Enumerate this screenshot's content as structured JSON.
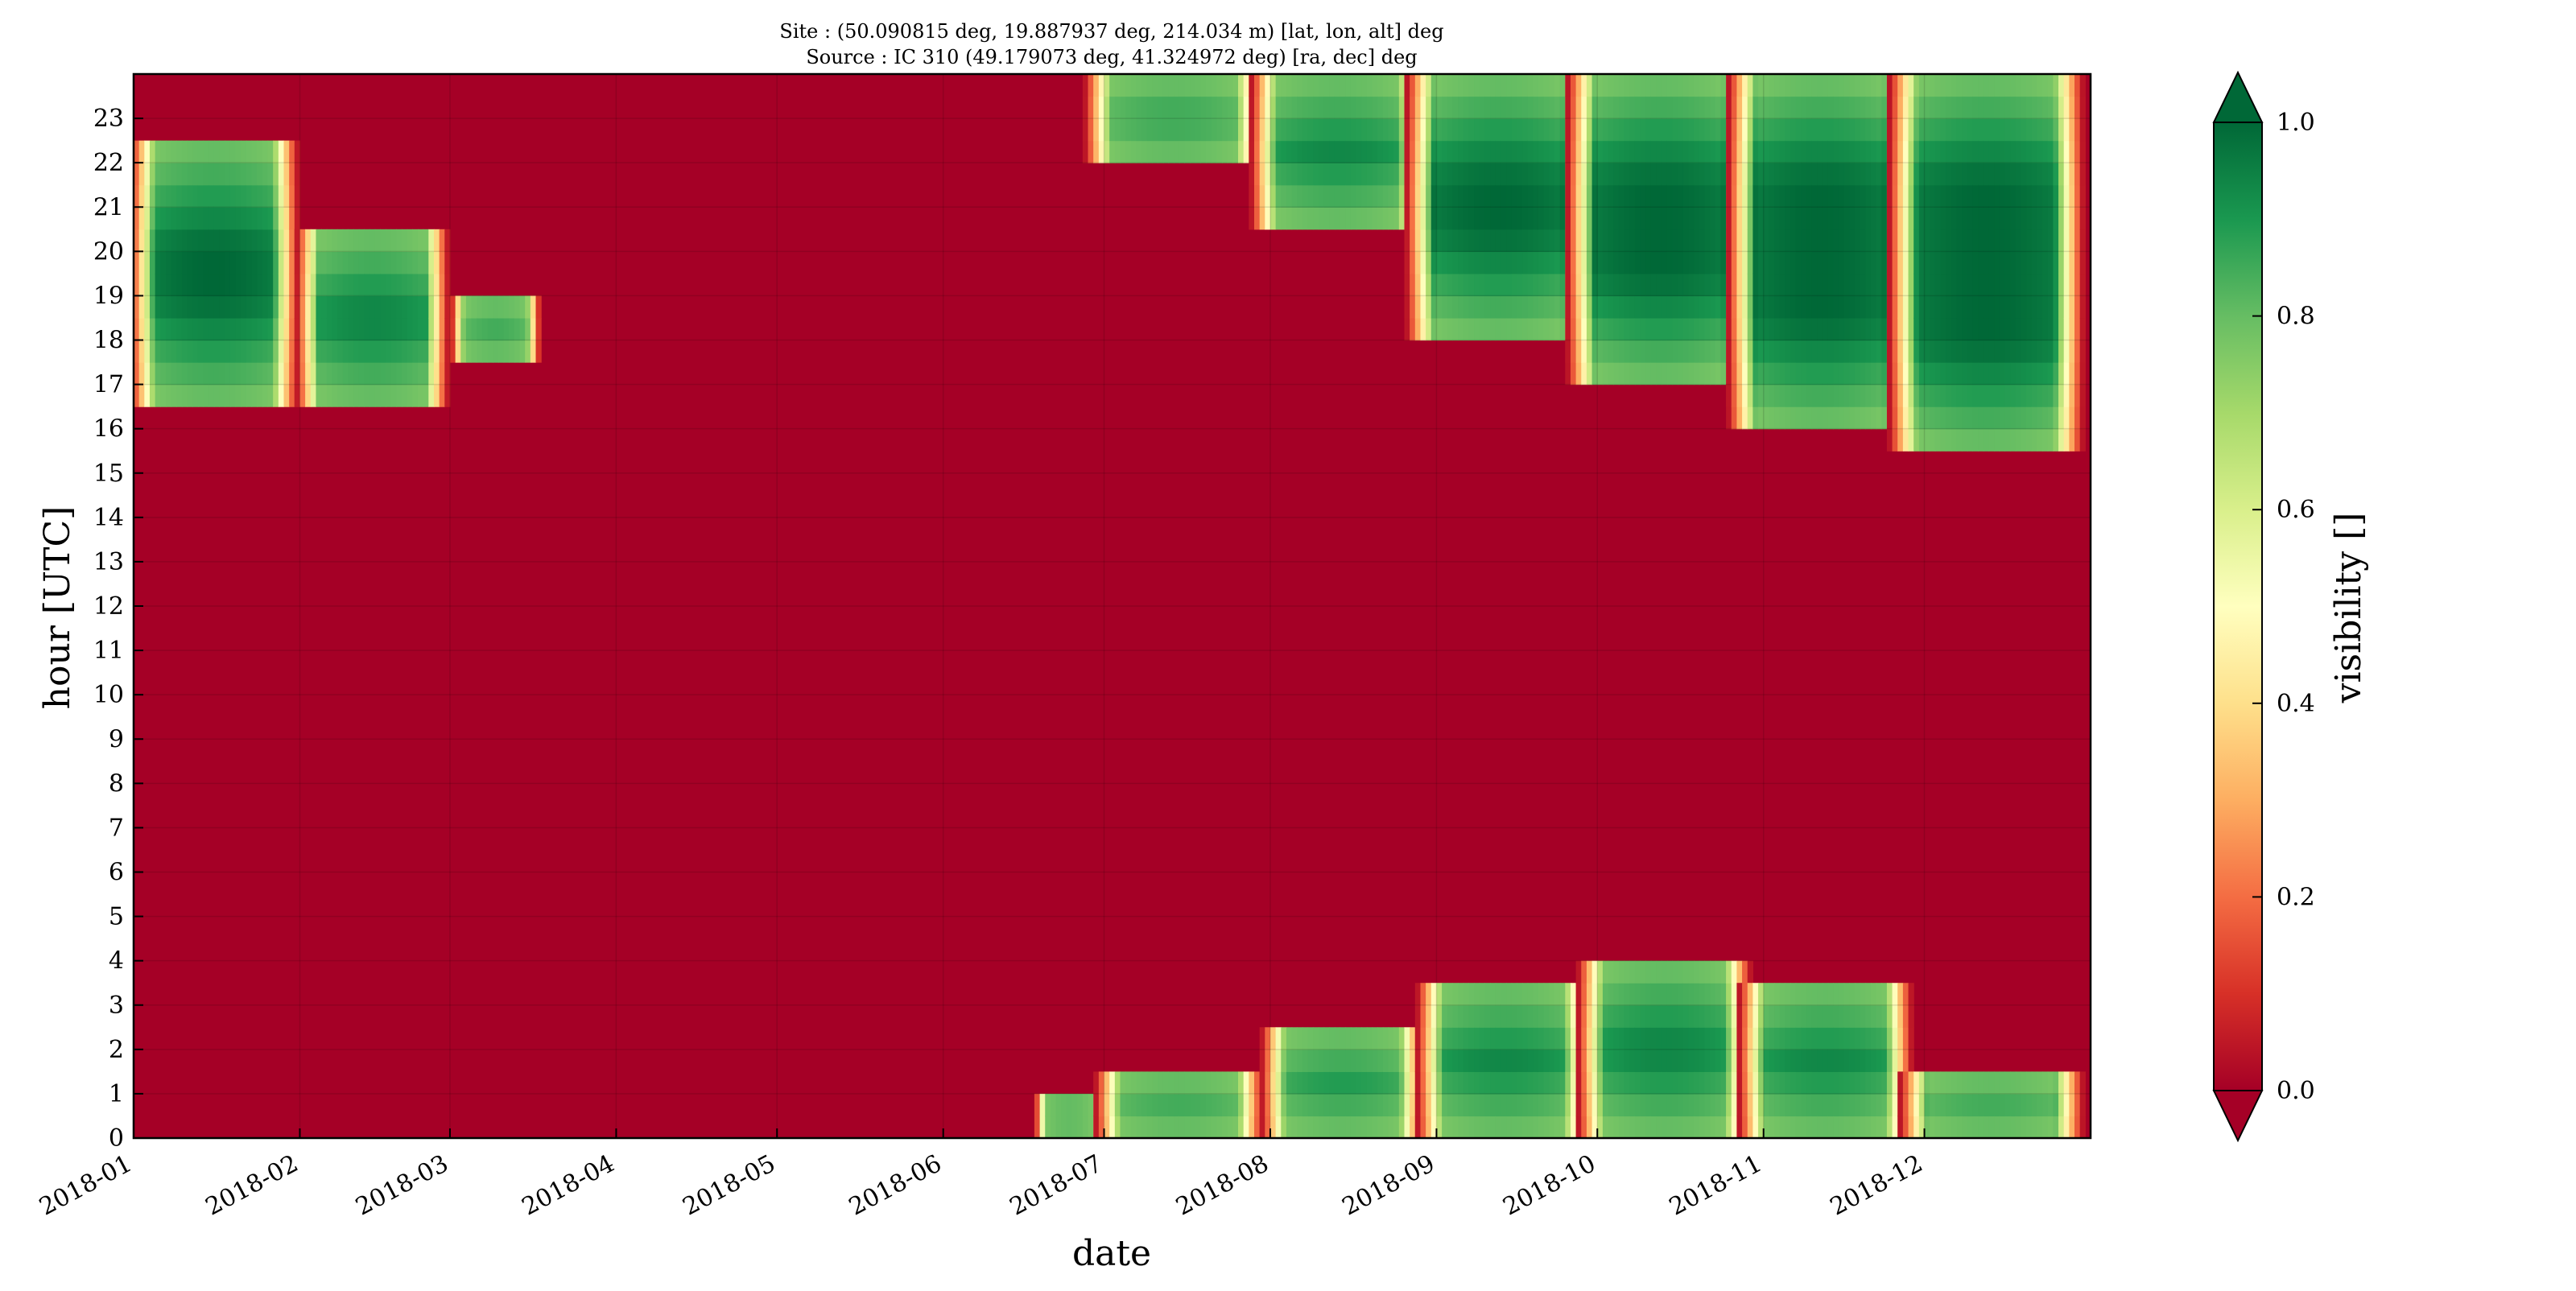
{
  "chart_data": {
    "type": "heatmap",
    "title_lines": [
      "Site : (50.090815 deg, 19.887937 deg, 214.034 m) [lat, lon, alt] deg",
      "Source : IC 310 (49.179073 deg, 41.324972 deg) [ra, dec] deg"
    ],
    "xlabel": "date",
    "ylabel": "hour [UTC]",
    "x_domain": [
      "2018-01-01",
      "2018-12-31"
    ],
    "ylim": [
      0,
      24
    ],
    "x_ticks": [
      "2018-01",
      "2018-02",
      "2018-03",
      "2018-04",
      "2018-05",
      "2018-06",
      "2018-07",
      "2018-08",
      "2018-09",
      "2018-10",
      "2018-11",
      "2018-12"
    ],
    "y_ticks": [
      "0",
      "1",
      "2",
      "3",
      "4",
      "5",
      "6",
      "7",
      "8",
      "9",
      "10",
      "11",
      "12",
      "13",
      "14",
      "15",
      "16",
      "17",
      "18",
      "19",
      "20",
      "21",
      "22",
      "23"
    ],
    "grid": true,
    "colormap": {
      "name": "RdYlGn",
      "stops": [
        "#a50026",
        "#d73027",
        "#f46d43",
        "#fdae61",
        "#fee08b",
        "#ffffbf",
        "#d9ef8b",
        "#a6d96a",
        "#66bd63",
        "#1a9850",
        "#006837"
      ],
      "background": "#a50026"
    },
    "colorbar": {
      "label": "visibility []",
      "range": [
        0,
        1
      ],
      "ticks": [
        "0.0",
        "0.2",
        "0.4",
        "0.6",
        "0.8",
        "1.0"
      ],
      "extend": "both"
    },
    "visibility_regions": [
      {
        "start": "2017-12-31",
        "end": "2018-02-01",
        "hours": [
          16.5,
          22.5
        ]
      },
      {
        "start": "2018-01-31",
        "end": "2018-03-01",
        "hours": [
          16.5,
          20.5
        ]
      },
      {
        "start": "2018-03-01",
        "end": "2018-03-18",
        "hours": [
          17.5,
          19
        ]
      },
      {
        "start": "2018-06-18",
        "end": "2018-07-01",
        "hours": [
          0,
          1
        ]
      },
      {
        "start": "2018-06-29",
        "end": "2018-07-31",
        "hours": [
          0,
          1.5
        ]
      },
      {
        "start": "2018-07-30",
        "end": "2018-08-30",
        "hours": [
          0,
          2.5
        ]
      },
      {
        "start": "2018-06-27",
        "end": "2018-07-31",
        "hours": [
          22,
          24
        ]
      },
      {
        "start": "2018-07-28",
        "end": "2018-08-30",
        "hours": [
          20.5,
          24
        ]
      },
      {
        "start": "2018-08-28",
        "end": "2018-09-30",
        "hours": [
          0,
          3.5
        ]
      },
      {
        "start": "2018-08-26",
        "end": "2018-09-30",
        "hours": [
          18,
          24
        ]
      },
      {
        "start": "2018-09-27",
        "end": "2018-10-30",
        "hours": [
          0,
          4
        ]
      },
      {
        "start": "2018-09-25",
        "end": "2018-10-30",
        "hours": [
          17,
          24
        ]
      },
      {
        "start": "2018-10-27",
        "end": "2018-11-29",
        "hours": [
          0,
          3.5
        ]
      },
      {
        "start": "2018-10-25",
        "end": "2018-11-29",
        "hours": [
          16,
          24
        ]
      },
      {
        "start": "2018-11-26",
        "end": "2018-12-31",
        "hours": [
          0,
          1.5
        ]
      },
      {
        "start": "2018-11-24",
        "end": "2018-12-31",
        "hours": [
          15.5,
          24
        ]
      }
    ]
  }
}
